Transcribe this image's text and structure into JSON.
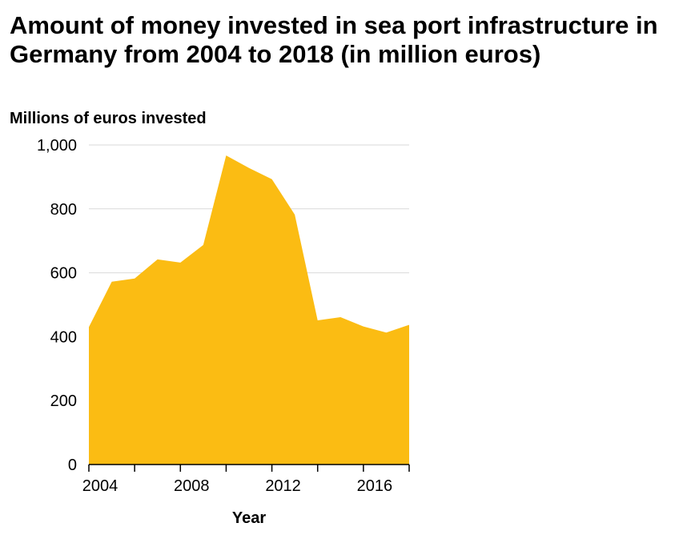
{
  "chart_data": {
    "type": "area",
    "title": "Amount of money invested in sea port infrastructure in Germany from 2004 to 2018 (in million euros)",
    "xlabel": "Year",
    "ylabel": "Millions of euros invested",
    "x": [
      2004,
      2005,
      2006,
      2007,
      2008,
      2009,
      2010,
      2011,
      2012,
      2013,
      2014,
      2015,
      2016,
      2017,
      2018
    ],
    "series": [
      {
        "values": [
          430,
          572,
          582,
          642,
          632,
          687,
          967,
          928,
          893,
          782,
          451,
          461,
          432,
          413,
          437
        ],
        "color": "#fbbc13"
      }
    ],
    "xlim": [
      2004,
      2018
    ],
    "ylim": [
      0,
      1000
    ],
    "xticks": [
      2004,
      2008,
      2012,
      2016
    ],
    "xtick_labels": [
      "2004",
      "2008",
      "2012",
      "2016"
    ],
    "yticks": [
      0,
      200,
      400,
      600,
      800,
      1000
    ],
    "ytick_labels": [
      "0",
      "200",
      "400",
      "600",
      "800",
      "1,000"
    ],
    "grid": "horizontal",
    "legend": "none"
  }
}
